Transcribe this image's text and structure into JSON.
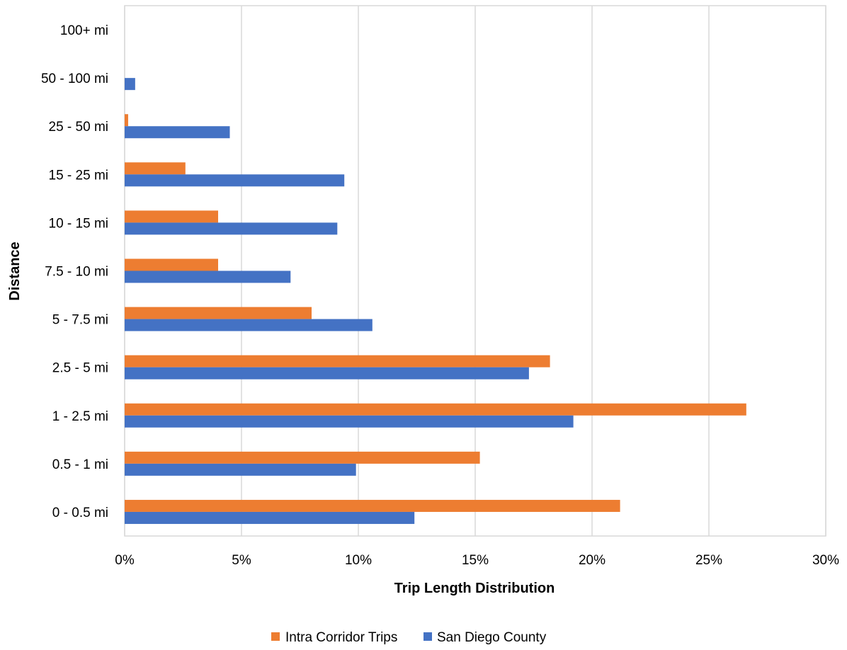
{
  "chart_data": {
    "type": "bar",
    "orientation": "horizontal",
    "categories": [
      "0 - 0.5 mi",
      "0.5 - 1 mi",
      "1 - 2.5 mi",
      "2.5 - 5 mi",
      "5 - 7.5 mi",
      "7.5 - 10 mi",
      "10 - 15 mi",
      "15 - 25 mi",
      "25 - 50 mi",
      "50 - 100 mi",
      "100+ mi"
    ],
    "series": [
      {
        "name": "Intra Corridor Trips",
        "color": "#ED7D31",
        "values": [
          21.2,
          15.2,
          26.6,
          18.2,
          8.0,
          4.0,
          4.0,
          2.6,
          0.15,
          0.0,
          0.0
        ]
      },
      {
        "name": "San Diego County",
        "color": "#4472C4",
        "values": [
          12.4,
          9.9,
          19.2,
          17.3,
          10.6,
          7.1,
          9.1,
          9.4,
          4.5,
          0.45,
          0.0
        ]
      }
    ],
    "xlabel": "Trip Length Distribution",
    "ylabel": "Distance",
    "xlim": [
      0,
      30
    ],
    "x_ticks": [
      0,
      5,
      10,
      15,
      20,
      25,
      30
    ],
    "x_tick_labels": [
      "0%",
      "5%",
      "10%",
      "15%",
      "20%",
      "25%",
      "30%"
    ],
    "grid": "vertical",
    "legend_position": "bottom"
  }
}
